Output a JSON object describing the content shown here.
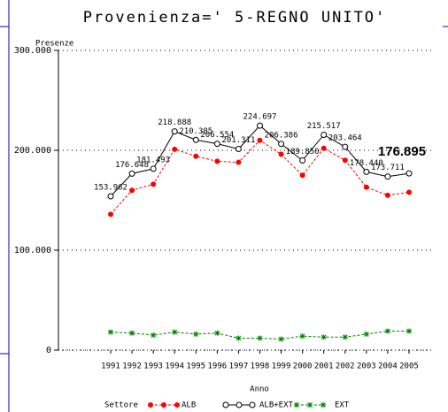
{
  "chart_data": {
    "type": "line",
    "title": "Provenienza=' 5-REGNO UNITO'",
    "y_label": "Presenze",
    "x_label": "Anno",
    "legend_title": "Settore",
    "categories": [
      "1991",
      "1992",
      "1993",
      "1994",
      "1995",
      "1996",
      "1997",
      "1998",
      "1999",
      "2000",
      "2001",
      "2002",
      "2003",
      "2004",
      "2005"
    ],
    "series": [
      {
        "name": "ALB",
        "color": "#ff0000",
        "marker": "dot",
        "dash": true,
        "values": [
          136000,
          160000,
          166000,
          201000,
          194000,
          189000,
          188000,
          210000,
          196000,
          175000,
          202000,
          190000,
          163000,
          155000,
          158000
        ]
      },
      {
        "name": "ALB+EXT",
        "color": "#000000",
        "marker": "circle",
        "dash": false,
        "values": [
          153962,
          176648,
          181493,
          218888,
          210385,
          206554,
          201311,
          224697,
          206386,
          189850,
          215517,
          203464,
          178440,
          173711,
          176895
        ],
        "value_labels": [
          "153.962",
          "176.648",
          "181.493",
          "218.888",
          "210.385",
          "206.554",
          "201.311",
          "224.697",
          "206.386",
          "189.850",
          "215.517",
          "203.464",
          "178.440",
          "173.711",
          "176.895"
        ]
      },
      {
        "name": "EXT",
        "color": "#008000",
        "marker": "star",
        "dash": true,
        "values": [
          18000,
          17000,
          15000,
          18000,
          16000,
          17000,
          12000,
          12000,
          11000,
          14000,
          13000,
          13000,
          16000,
          19000,
          19000
        ]
      }
    ],
    "ylim": [
      0,
      300000
    ],
    "yticks": [
      0,
      {
        "value": 100000,
        "label": "100.000"
      },
      {
        "value": 200000,
        "label": "200.000"
      },
      {
        "value": 300000,
        "label": "300.000"
      }
    ],
    "grid": true
  }
}
